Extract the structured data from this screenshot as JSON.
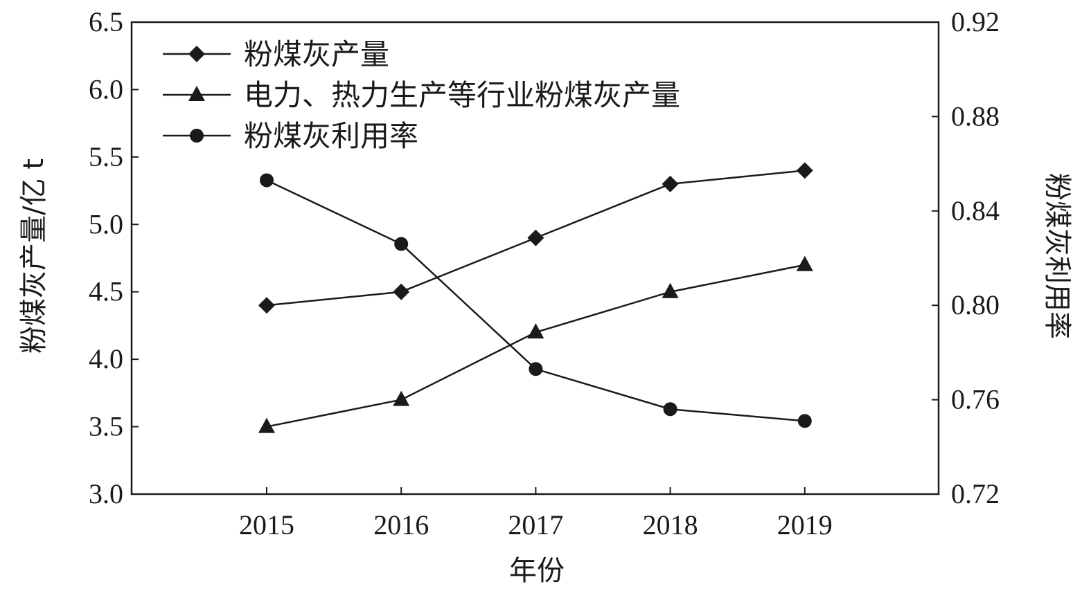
{
  "chart_data": {
    "type": "line",
    "x": [
      "2015",
      "2016",
      "2017",
      "2018",
      "2019"
    ],
    "xlabel": "年份",
    "ylabel_left": "粉煤灰产量/亿 t",
    "ylabel_right": "粉煤灰利用率",
    "ylim_left": [
      3.0,
      6.5
    ],
    "ylim_right": [
      0.72,
      0.92
    ],
    "yticks_left": [
      "3.0",
      "3.5",
      "4.0",
      "4.5",
      "5.0",
      "5.5",
      "6.0",
      "6.5"
    ],
    "yticks_right": [
      "0.72",
      "0.76",
      "0.80",
      "0.84",
      "0.88",
      "0.92"
    ],
    "legend_position": "top-left",
    "grid": false,
    "series": [
      {
        "name": "粉煤灰产量",
        "axis": "left",
        "marker": "diamond",
        "values": [
          4.4,
          4.5,
          4.9,
          5.3,
          5.4
        ]
      },
      {
        "name": "电力、热力生产等行业粉煤灰产量",
        "axis": "left",
        "marker": "triangle",
        "values": [
          3.5,
          3.7,
          4.2,
          4.5,
          4.7
        ]
      },
      {
        "name": "粉煤灰利用率",
        "axis": "right",
        "marker": "circle",
        "values": [
          0.853,
          0.826,
          0.773,
          0.756,
          0.751
        ]
      }
    ],
    "line_color": "#1a1a1a"
  }
}
